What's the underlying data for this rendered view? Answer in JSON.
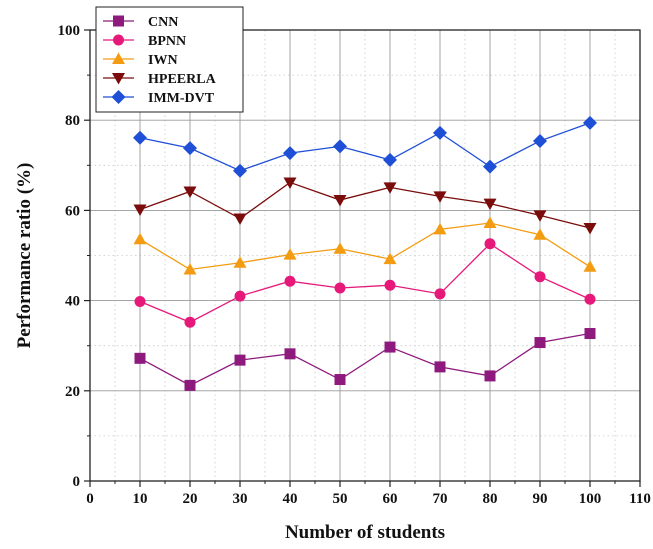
{
  "chart_data": {
    "type": "line",
    "xlabel": "Number of students",
    "ylabel": "Performance ratio (%)",
    "xlim": [
      0,
      110
    ],
    "ylim": [
      0,
      100
    ],
    "xticks": [
      0,
      10,
      20,
      30,
      40,
      50,
      60,
      70,
      80,
      90,
      100,
      110
    ],
    "yticks": [
      0,
      20,
      40,
      60,
      80,
      100
    ],
    "grid": true,
    "legend_position": "top-left",
    "x": [
      10,
      20,
      30,
      40,
      50,
      60,
      70,
      80,
      90,
      100
    ],
    "series": [
      {
        "name": "CNN",
        "color": "#8e1a7e",
        "marker": "square",
        "values": [
          27.2,
          21.2,
          26.8,
          28.2,
          22.5,
          29.7,
          25.3,
          23.3,
          30.7,
          32.7
        ]
      },
      {
        "name": "BPNN",
        "color": "#e6197a",
        "marker": "circle",
        "values": [
          39.8,
          35.2,
          41.0,
          44.3,
          42.8,
          43.4,
          41.5,
          52.6,
          45.3,
          40.3
        ]
      },
      {
        "name": "IWN",
        "color": "#f39c12",
        "marker": "triangle-up",
        "values": [
          53.6,
          46.9,
          48.4,
          50.2,
          51.5,
          49.2,
          55.8,
          57.2,
          54.6,
          47.5
        ]
      },
      {
        "name": "HPEERLA",
        "color": "#7a0c0c",
        "marker": "triangle-down",
        "values": [
          60.2,
          64.2,
          58.2,
          66.2,
          62.3,
          65.1,
          63.1,
          61.5,
          58.9,
          56.1
        ]
      },
      {
        "name": "IMM-DVT",
        "color": "#1f4fd6",
        "marker": "diamond",
        "values": [
          76.1,
          73.8,
          68.8,
          72.7,
          74.2,
          71.2,
          77.2,
          69.7,
          75.4,
          79.4
        ]
      }
    ]
  }
}
